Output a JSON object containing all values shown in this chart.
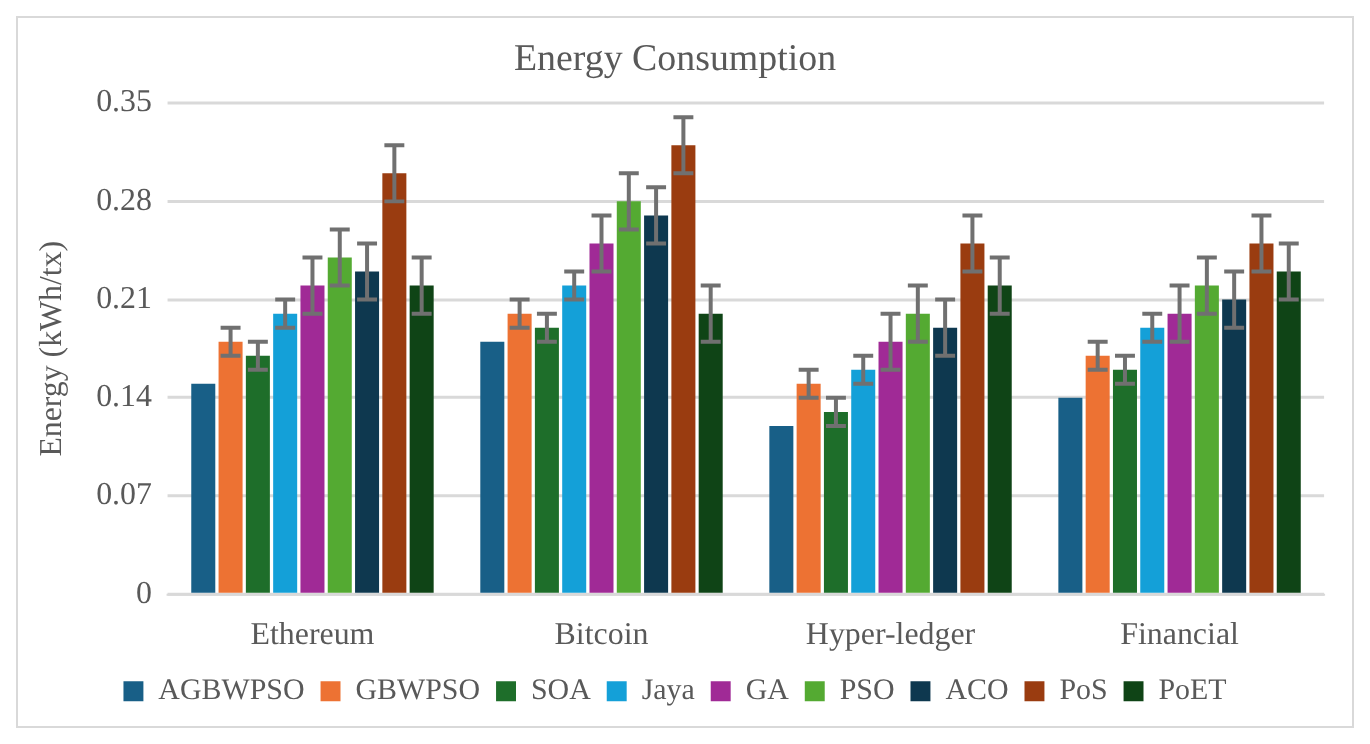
{
  "chart_data": {
    "type": "bar",
    "title": "Energy Consumption",
    "ylabel": "Energy (kWh/tx)",
    "categories": [
      "Ethereum",
      "Bitcoin",
      "Hyper-ledger",
      "Financial"
    ],
    "series": [
      {
        "name": "AGBWPSO",
        "color": "#185f87",
        "values": [
          0.15,
          0.18,
          0.12,
          0.14
        ]
      },
      {
        "name": "GBWPSO",
        "color": "#ed7233",
        "values": [
          0.18,
          0.2,
          0.15,
          0.17
        ],
        "errors": [
          0.01,
          0.01,
          0.01,
          0.01
        ]
      },
      {
        "name": "SOA",
        "color": "#1e6e2a",
        "values": [
          0.17,
          0.19,
          0.13,
          0.16
        ],
        "errors": [
          0.01,
          0.01,
          0.01,
          0.01
        ]
      },
      {
        "name": "Jaya",
        "color": "#14a0d8",
        "values": [
          0.2,
          0.22,
          0.16,
          0.19
        ],
        "errors": [
          0.01,
          0.01,
          0.01,
          0.01
        ]
      },
      {
        "name": "GA",
        "color": "#a02a96",
        "values": [
          0.22,
          0.25,
          0.18,
          0.2
        ],
        "errors": [
          0.02,
          0.02,
          0.02,
          0.02
        ]
      },
      {
        "name": "PSO",
        "color": "#54aa32",
        "values": [
          0.24,
          0.28,
          0.2,
          0.22
        ],
        "errors": [
          0.02,
          0.02,
          0.02,
          0.02
        ]
      },
      {
        "name": "ACO",
        "color": "#0e384f",
        "values": [
          0.23,
          0.27,
          0.19,
          0.21
        ],
        "errors": [
          0.02,
          0.02,
          0.02,
          0.02
        ]
      },
      {
        "name": "PoS",
        "color": "#9a3c10",
        "values": [
          0.3,
          0.32,
          0.25,
          0.25
        ],
        "errors": [
          0.02,
          0.02,
          0.02,
          0.02
        ]
      },
      {
        "name": "PoET",
        "color": "#0f4416",
        "values": [
          0.22,
          0.2,
          0.22,
          0.23
        ],
        "errors": [
          0.02,
          0.02,
          0.02,
          0.02
        ]
      }
    ],
    "ylim": [
      0,
      0.35
    ],
    "yticks": [
      0,
      0.07,
      0.14,
      0.21,
      0.28,
      0.35
    ],
    "grid": "y",
    "legend": "bottom"
  }
}
